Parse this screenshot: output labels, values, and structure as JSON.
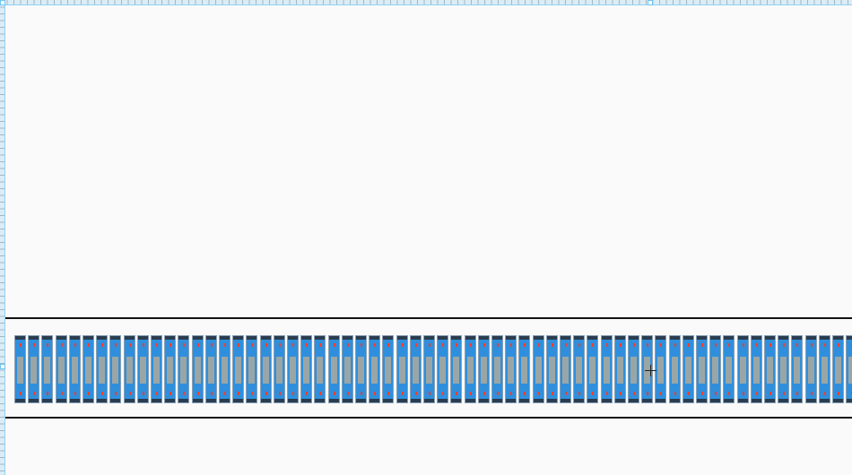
{
  "canvas": {
    "colors": {
      "background": "#fafafa",
      "ruler": "#dcecf5",
      "divider": "#111111",
      "cell_body": "#2f8fdc",
      "cell_cap": "#2a3d50",
      "cell_core": "#9aa6a6",
      "cell_marker": "#f04030"
    },
    "icons": [
      "crosshair-cursor-icon"
    ]
  }
}
